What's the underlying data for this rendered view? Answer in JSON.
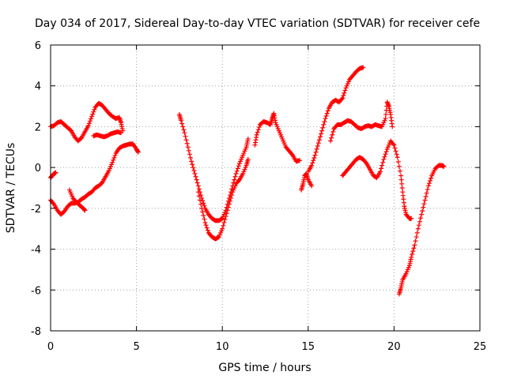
{
  "chart_data": {
    "type": "scatter",
    "title": "Day 034 of 2017, Sidereal Day-to-day VTEC variation (SDTVAR) for receiver cefe",
    "xlabel": "GPS time / hours",
    "ylabel": "SDTVAR / TECUs",
    "xlim": [
      0,
      25
    ],
    "ylim": [
      -8,
      6
    ],
    "xticks": [
      0,
      5,
      10,
      15,
      20,
      25
    ],
    "yticks": [
      -8,
      -6,
      -4,
      -2,
      0,
      2,
      4,
      6
    ],
    "grid": true,
    "marker": "plus",
    "color": "#ff0000",
    "series": [
      {
        "points": [
          [
            0,
            2.0
          ],
          [
            0.2,
            2.05
          ],
          [
            0.4,
            2.2
          ],
          [
            0.6,
            2.25
          ],
          [
            0.8,
            2.1
          ],
          [
            1.0,
            1.95
          ],
          [
            1.2,
            1.8
          ],
          [
            1.4,
            1.5
          ],
          [
            1.6,
            1.3
          ],
          [
            1.8,
            1.45
          ],
          [
            2.0,
            1.75
          ],
          [
            2.2,
            2.05
          ],
          [
            2.4,
            2.5
          ],
          [
            2.6,
            2.95
          ],
          [
            2.8,
            3.15
          ],
          [
            3.0,
            3.05
          ],
          [
            3.2,
            2.85
          ],
          [
            3.4,
            2.65
          ],
          [
            3.6,
            2.5
          ],
          [
            3.8,
            2.4
          ],
          [
            4.0,
            2.45
          ],
          [
            4.1,
            2.2
          ],
          [
            4.2,
            1.8
          ]
        ]
      },
      {
        "points": [
          [
            2.5,
            1.55
          ],
          [
            2.7,
            1.6
          ],
          [
            2.9,
            1.55
          ],
          [
            3.1,
            1.5
          ],
          [
            3.3,
            1.55
          ],
          [
            3.5,
            1.65
          ],
          [
            3.7,
            1.7
          ],
          [
            3.9,
            1.75
          ],
          [
            4.1,
            1.7
          ]
        ]
      },
      {
        "points": [
          [
            0,
            -0.5
          ],
          [
            0.1,
            -0.4
          ],
          [
            0.2,
            -0.3
          ],
          [
            0.3,
            -0.25
          ]
        ]
      },
      {
        "points": [
          [
            0,
            -1.6
          ],
          [
            0.2,
            -1.8
          ],
          [
            0.4,
            -2.1
          ],
          [
            0.6,
            -2.3
          ],
          [
            0.8,
            -2.15
          ],
          [
            1.0,
            -1.9
          ],
          [
            1.2,
            -1.75
          ],
          [
            1.4,
            -1.75
          ],
          [
            1.6,
            -1.7
          ],
          [
            1.8,
            -1.55
          ],
          [
            2.0,
            -1.45
          ],
          [
            2.2,
            -1.3
          ],
          [
            2.4,
            -1.2
          ],
          [
            2.6,
            -1.0
          ],
          [
            2.8,
            -0.9
          ],
          [
            3.0,
            -0.75
          ],
          [
            3.2,
            -0.45
          ],
          [
            3.4,
            -0.15
          ],
          [
            3.6,
            0.25
          ],
          [
            3.8,
            0.7
          ],
          [
            4.0,
            0.95
          ],
          [
            4.2,
            1.05
          ],
          [
            4.4,
            1.1
          ],
          [
            4.6,
            1.15
          ],
          [
            4.8,
            1.15
          ],
          [
            5.0,
            0.9
          ],
          [
            5.1,
            0.75
          ]
        ]
      },
      {
        "points": [
          [
            1.1,
            -1.1
          ],
          [
            1.3,
            -1.5
          ],
          [
            1.5,
            -1.7
          ],
          [
            1.7,
            -1.85
          ],
          [
            1.9,
            -2.0
          ],
          [
            2.0,
            -2.1
          ]
        ]
      },
      {
        "points": [
          [
            7.5,
            2.6
          ],
          [
            7.6,
            2.3
          ],
          [
            7.8,
            1.7
          ],
          [
            8.0,
            1.0
          ],
          [
            8.2,
            0.3
          ],
          [
            8.4,
            -0.3
          ],
          [
            8.6,
            -0.9
          ],
          [
            8.8,
            -1.5
          ],
          [
            9.0,
            -2.0
          ],
          [
            9.2,
            -2.3
          ],
          [
            9.4,
            -2.5
          ],
          [
            9.6,
            -2.6
          ],
          [
            9.8,
            -2.6
          ],
          [
            10.0,
            -2.5
          ],
          [
            10.2,
            -2.1
          ],
          [
            10.4,
            -1.5
          ],
          [
            10.6,
            -0.9
          ],
          [
            10.8,
            -0.3
          ],
          [
            11.0,
            0.2
          ],
          [
            11.2,
            0.6
          ],
          [
            11.4,
            1.0
          ],
          [
            11.5,
            1.4
          ]
        ]
      },
      {
        "points": [
          [
            8.6,
            -1.2
          ],
          [
            8.8,
            -2.0
          ],
          [
            9.0,
            -2.7
          ],
          [
            9.2,
            -3.2
          ],
          [
            9.4,
            -3.4
          ],
          [
            9.6,
            -3.5
          ],
          [
            9.8,
            -3.4
          ],
          [
            10.0,
            -3.0
          ],
          [
            10.2,
            -2.4
          ],
          [
            10.4,
            -1.8
          ],
          [
            10.6,
            -1.2
          ],
          [
            10.8,
            -0.8
          ],
          [
            11.0,
            -0.6
          ],
          [
            11.2,
            -0.3
          ],
          [
            11.4,
            0.1
          ],
          [
            11.5,
            0.4
          ]
        ]
      },
      {
        "points": [
          [
            11.9,
            1.1
          ],
          [
            12.0,
            1.6
          ],
          [
            12.2,
            2.1
          ],
          [
            12.4,
            2.25
          ],
          [
            12.6,
            2.2
          ],
          [
            12.8,
            2.1
          ],
          [
            12.9,
            2.4
          ],
          [
            13.0,
            2.65
          ],
          [
            13.1,
            2.2
          ],
          [
            13.3,
            1.8
          ],
          [
            13.5,
            1.4
          ],
          [
            13.7,
            1.0
          ],
          [
            13.9,
            0.8
          ],
          [
            14.1,
            0.6
          ],
          [
            14.3,
            0.3
          ],
          [
            14.5,
            0.35
          ]
        ]
      },
      {
        "points": [
          [
            14.6,
            -1.1
          ],
          [
            14.7,
            -0.8
          ],
          [
            14.8,
            -0.4
          ],
          [
            14.9,
            -0.3
          ],
          [
            15.0,
            -0.6
          ],
          [
            15.2,
            -0.9
          ]
        ]
      },
      {
        "points": [
          [
            15.0,
            -0.2
          ],
          [
            15.2,
            0.1
          ],
          [
            15.4,
            0.6
          ],
          [
            15.6,
            1.2
          ],
          [
            15.8,
            1.8
          ],
          [
            16.0,
            2.4
          ],
          [
            16.2,
            2.9
          ],
          [
            16.4,
            3.2
          ],
          [
            16.6,
            3.3
          ],
          [
            16.8,
            3.2
          ],
          [
            17.0,
            3.4
          ],
          [
            17.2,
            3.9
          ],
          [
            17.4,
            4.3
          ],
          [
            17.6,
            4.5
          ],
          [
            17.8,
            4.7
          ],
          [
            18.0,
            4.85
          ],
          [
            18.2,
            4.9
          ]
        ]
      },
      {
        "points": [
          [
            16.3,
            1.3
          ],
          [
            16.5,
            1.9
          ],
          [
            16.7,
            2.1
          ],
          [
            16.9,
            2.1
          ],
          [
            17.1,
            2.2
          ],
          [
            17.3,
            2.3
          ],
          [
            17.5,
            2.25
          ],
          [
            17.7,
            2.1
          ],
          [
            17.9,
            1.95
          ],
          [
            18.1,
            1.9
          ],
          [
            18.3,
            2.0
          ],
          [
            18.5,
            2.05
          ],
          [
            18.7,
            2.0
          ],
          [
            18.9,
            2.1
          ],
          [
            19.1,
            2.05
          ],
          [
            19.3,
            2.0
          ],
          [
            19.5,
            2.4
          ],
          [
            19.6,
            3.2
          ],
          [
            19.7,
            3.0
          ],
          [
            19.8,
            2.6
          ],
          [
            19.9,
            2.0
          ]
        ]
      },
      {
        "points": [
          [
            17.0,
            -0.4
          ],
          [
            17.2,
            -0.2
          ],
          [
            17.4,
            0.0
          ],
          [
            17.6,
            0.2
          ],
          [
            17.8,
            0.4
          ],
          [
            18.0,
            0.5
          ],
          [
            18.2,
            0.4
          ],
          [
            18.4,
            0.2
          ],
          [
            18.6,
            -0.1
          ],
          [
            18.8,
            -0.4
          ],
          [
            19.0,
            -0.5
          ],
          [
            19.2,
            -0.2
          ],
          [
            19.4,
            0.4
          ],
          [
            19.6,
            0.9
          ],
          [
            19.8,
            1.3
          ],
          [
            20.0,
            1.1
          ],
          [
            20.2,
            0.5
          ],
          [
            20.4,
            -0.4
          ],
          [
            20.5,
            -1.2
          ],
          [
            20.6,
            -1.9
          ],
          [
            20.7,
            -2.3
          ],
          [
            20.9,
            -2.5
          ],
          [
            21.0,
            -2.5
          ]
        ]
      },
      {
        "points": [
          [
            20.3,
            -6.2
          ],
          [
            20.4,
            -5.9
          ],
          [
            20.5,
            -5.5
          ],
          [
            20.7,
            -5.2
          ],
          [
            20.9,
            -4.8
          ],
          [
            21.0,
            -4.4
          ],
          [
            21.2,
            -3.8
          ],
          [
            21.4,
            -3.0
          ],
          [
            21.6,
            -2.3
          ],
          [
            21.8,
            -1.6
          ],
          [
            22.0,
            -0.9
          ],
          [
            22.2,
            -0.4
          ],
          [
            22.4,
            -0.05
          ],
          [
            22.6,
            0.1
          ],
          [
            22.8,
            0.1
          ],
          [
            22.9,
            0.05
          ]
        ]
      }
    ]
  }
}
